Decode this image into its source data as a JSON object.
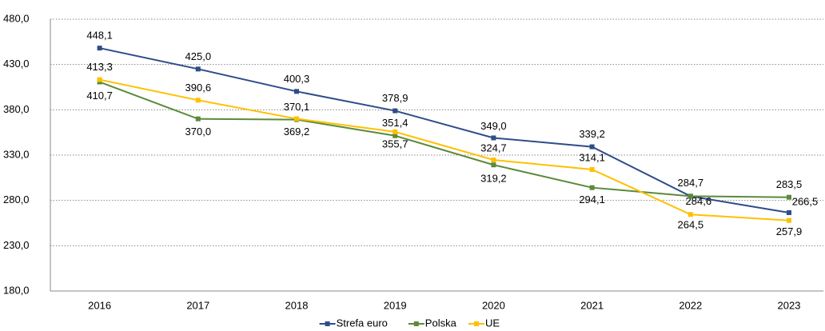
{
  "chart_data": {
    "type": "line",
    "categories": [
      "2016",
      "2017",
      "2018",
      "2019",
      "2020",
      "2021",
      "2022",
      "2023"
    ],
    "series": [
      {
        "name": "Strefa euro",
        "color": "#2e4d8a",
        "values": [
          448.1,
          425.0,
          400.3,
          378.9,
          349.0,
          339.2,
          284.6,
          266.5
        ],
        "value_labels": [
          "448,1",
          "425,0",
          "400,3",
          "378,9",
          "349,0",
          "339,2",
          "284,6",
          "266,5"
        ]
      },
      {
        "name": "Polska",
        "color": "#5b8a3a",
        "values": [
          410.7,
          370.0,
          369.2,
          351.4,
          319.2,
          294.1,
          284.7,
          283.5
        ],
        "value_labels": [
          "410,7",
          "370,0",
          "369,2",
          "351,4",
          "319,2",
          "294,1",
          "284,7",
          "283,5"
        ]
      },
      {
        "name": "UE",
        "color": "#ffc000",
        "values": [
          413.3,
          390.6,
          370.1,
          355.7,
          324.7,
          314.1,
          264.5,
          257.9
        ],
        "value_labels": [
          "413,3",
          "390,6",
          "370,1",
          "355,7",
          "324,7",
          "314,1",
          "264,5",
          "257,9"
        ]
      }
    ],
    "ylim": [
      180,
      480
    ],
    "yticks": [
      {
        "value": 180,
        "label": "180,0"
      },
      {
        "value": 230,
        "label": "230,0"
      },
      {
        "value": 280,
        "label": "280,0"
      },
      {
        "value": 330,
        "label": "330,0"
      },
      {
        "value": 380,
        "label": "380,0"
      },
      {
        "value": 430,
        "label": "430,0"
      },
      {
        "value": 480,
        "label": "480,0"
      }
    ],
    "grid": true,
    "legend": "bottom"
  }
}
